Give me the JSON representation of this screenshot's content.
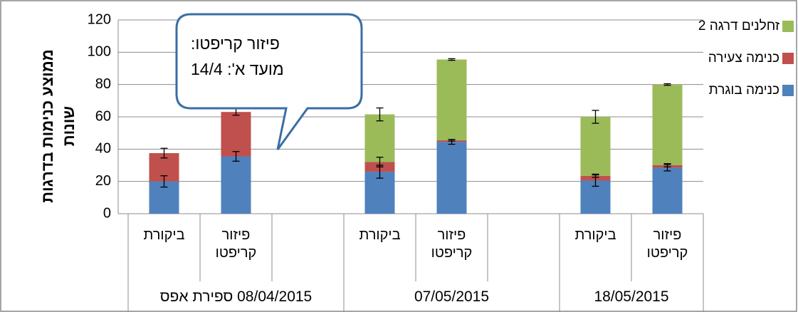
{
  "chart_data": {
    "type": "stacked_bar",
    "ylabel": "ממוצע כנימות בדרגות שונות",
    "annotation": [
      "פיזור קריפטו:",
      "מועד א': 14/4"
    ],
    "groups": [
      {
        "name": "08/04/2015 ספירת אפס",
        "categories": [
          "ביקורת",
          "פיזור קריפטו",
          null
        ]
      },
      {
        "name": "07/05/2015",
        "categories": [
          "ביקורת",
          "פיזור קריפטו",
          null
        ]
      },
      {
        "name": "18/05/2015",
        "categories": [
          "ביקורת",
          "פיזור קריפטו"
        ]
      }
    ],
    "series": [
      {
        "name": "כנימה בוגרת",
        "color": "#4f81bd",
        "values": [
          20,
          35.5,
          null,
          26,
          44.5,
          null,
          20.5,
          28.5
        ],
        "errors": [
          3.5,
          3,
          null,
          4,
          1.5,
          null,
          3.5,
          2
        ]
      },
      {
        "name": "כנימה צעירה",
        "color": "#c0504d",
        "values": [
          17.5,
          27.5,
          null,
          6,
          1,
          null,
          3,
          1.5
        ],
        "errors": [
          3,
          2,
          null,
          3,
          0.5,
          null,
          1,
          1
        ]
      },
      {
        "name": "זחלנים דרגה 2",
        "color": "#9bbb59",
        "values": [
          0,
          0,
          null,
          29.5,
          50,
          null,
          36.5,
          50
        ],
        "errors": [
          null,
          null,
          null,
          4,
          0.5,
          null,
          4,
          0.5
        ]
      }
    ],
    "ylim": [
      0,
      120
    ],
    "yticks": [
      0,
      20,
      40,
      60,
      80,
      100,
      120
    ],
    "grid": true,
    "legend": "right"
  }
}
